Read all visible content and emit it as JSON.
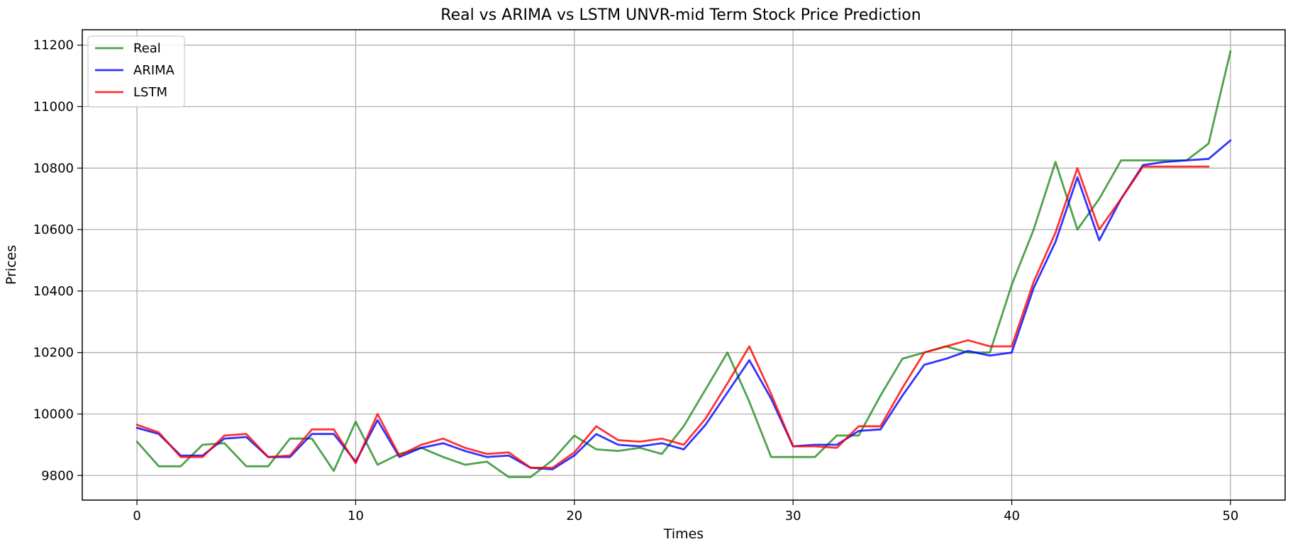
{
  "chart_data": {
    "type": "line",
    "title": "Real vs ARIMA vs LSTM UNVR-mid Term Stock Price Prediction",
    "xlabel": "Times",
    "ylabel": "Prices",
    "xlim": [
      -2.5,
      52.5
    ],
    "ylim": [
      9720,
      11250
    ],
    "xticks": [
      0,
      10,
      20,
      30,
      40,
      50
    ],
    "yticks": [
      9800,
      10000,
      10200,
      10400,
      10600,
      10800,
      11000,
      11200
    ],
    "grid": true,
    "legend_position": "top-left",
    "series": [
      {
        "name": "Real",
        "color": "#228B22",
        "x": [
          0,
          1,
          2,
          3,
          4,
          5,
          6,
          7,
          8,
          9,
          10,
          11,
          12,
          13,
          14,
          15,
          16,
          17,
          18,
          19,
          20,
          21,
          22,
          23,
          24,
          25,
          26,
          27,
          28,
          29,
          30,
          31,
          32,
          33,
          34,
          35,
          36,
          37,
          38,
          39,
          40,
          41,
          42,
          43,
          44,
          45,
          46,
          47,
          48,
          49,
          50
        ],
        "values": [
          9910,
          9830,
          9830,
          9900,
          9905,
          9830,
          9830,
          9920,
          9920,
          9815,
          9975,
          9835,
          9870,
          9890,
          9860,
          9835,
          9845,
          9795,
          9795,
          9850,
          9930,
          9885,
          9880,
          9890,
          9870,
          9960,
          10080,
          10200,
          10040,
          9860,
          9860,
          9860,
          9930,
          9930,
          10060,
          10180,
          10200,
          10220,
          10200,
          10200,
          10420,
          10600,
          10820,
          10600,
          10700,
          10825,
          10825,
          10825,
          10825,
          10880,
          11180
        ]
      },
      {
        "name": "ARIMA",
        "color": "#0000FF",
        "x": [
          0,
          1,
          2,
          3,
          4,
          5,
          6,
          7,
          8,
          9,
          10,
          11,
          12,
          13,
          14,
          15,
          16,
          17,
          18,
          19,
          20,
          21,
          22,
          23,
          24,
          25,
          26,
          27,
          28,
          29,
          30,
          31,
          32,
          33,
          34,
          35,
          36,
          37,
          38,
          39,
          40,
          41,
          42,
          43,
          44,
          45,
          46,
          47,
          48,
          49,
          50
        ],
        "values": [
          9955,
          9935,
          9865,
          9865,
          9920,
          9925,
          9860,
          9860,
          9935,
          9935,
          9845,
          9980,
          9860,
          9890,
          9905,
          9880,
          9860,
          9865,
          9825,
          9820,
          9865,
          9935,
          9900,
          9895,
          9905,
          9885,
          9965,
          10070,
          10175,
          10050,
          9895,
          9900,
          9900,
          9945,
          9950,
          10060,
          10160,
          10180,
          10205,
          10190,
          10200,
          10410,
          10560,
          10770,
          10565,
          10700,
          10810,
          10820,
          10825,
          10830,
          10890
        ]
      },
      {
        "name": "LSTM",
        "color": "#FF0000",
        "x": [
          0,
          1,
          2,
          3,
          4,
          5,
          6,
          7,
          8,
          9,
          10,
          11,
          12,
          13,
          14,
          15,
          16,
          17,
          18,
          19,
          20,
          21,
          22,
          23,
          24,
          25,
          26,
          27,
          28,
          29,
          30,
          31,
          32,
          33,
          34,
          35,
          36,
          37,
          38,
          39,
          40,
          41,
          42,
          43,
          44,
          45,
          46,
          47,
          48,
          49
        ],
        "values": [
          9965,
          9940,
          9860,
          9860,
          9930,
          9935,
          9860,
          9865,
          9950,
          9950,
          9840,
          10000,
          9865,
          9900,
          9920,
          9890,
          9870,
          9875,
          9825,
          9825,
          9875,
          9960,
          9915,
          9910,
          9920,
          9900,
          9985,
          10100,
          10220,
          10065,
          9895,
          9895,
          9890,
          9960,
          9960,
          10085,
          10200,
          10220,
          10240,
          10220,
          10220,
          10430,
          10590,
          10800,
          10600,
          10700,
          10805,
          10805,
          10805,
          10805
        ]
      }
    ]
  }
}
